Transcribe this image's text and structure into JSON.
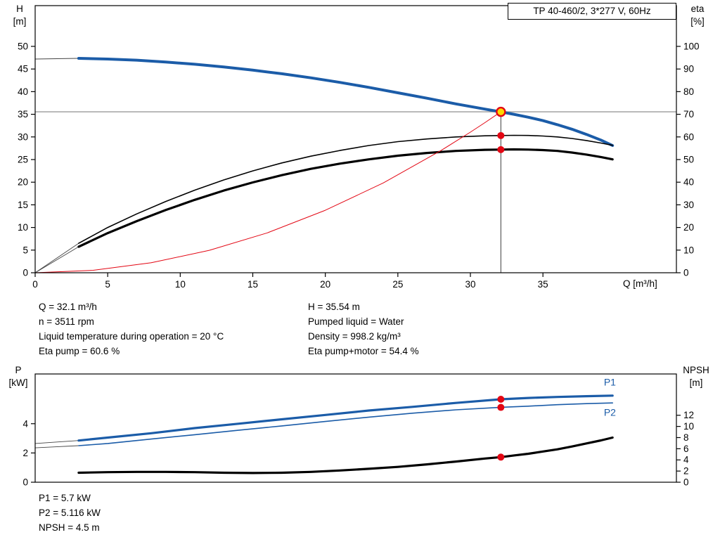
{
  "title_box": {
    "text": "TP 40-460/2, 3*277 V, 60Hz"
  },
  "annotations": {
    "top_left": [
      "Q = 32.1 m³/h",
      "n = 3511 rpm",
      "Liquid temperature during operation = 20 °C",
      "Eta pump = 60.6 %"
    ],
    "top_right": [
      "H = 35.54 m",
      "Pumped liquid = Water",
      "Density = 998.2 kg/m³",
      "Eta pump+motor = 54.4 %"
    ],
    "bottom": [
      "P1 = 5.7 kW",
      "P2 = 5.116 kW",
      "NPSH = 4.5 m"
    ]
  },
  "colors": {
    "curve_blue": "#1b5ca8",
    "curve_black": "#000000",
    "marker_red": "#e30613",
    "duty_yellow": "#ffd800",
    "ref_gray": "#9a9a9a",
    "ref_dark": "#3c3c3c",
    "thin_ext": "#444444"
  },
  "chart_data": [
    {
      "id": "qh-eta-chart",
      "type": "line",
      "title": "TP 40-460/2, 3*277 V, 60Hz",
      "x_axis": {
        "label": "Q [m³/h]",
        "min": 0,
        "max": 44.2,
        "ticks": [
          0,
          5,
          10,
          15,
          20,
          25,
          30,
          35
        ]
      },
      "y_left": {
        "label": [
          "H",
          "[m]"
        ],
        "min": 0,
        "max": 59,
        "ticks": [
          0,
          5,
          10,
          15,
          20,
          25,
          30,
          35,
          40,
          45,
          50
        ]
      },
      "y_right": {
        "label": [
          "eta",
          "[%]"
        ],
        "min": 0,
        "max": 118,
        "ticks": [
          0,
          10,
          20,
          30,
          40,
          50,
          60,
          70,
          80,
          90,
          100
        ]
      },
      "series": [
        {
          "name": "qh-curve-extension",
          "axis": "left",
          "color": "#444444",
          "width": 0.9,
          "points": [
            [
              0,
              47.2
            ],
            [
              3,
              47.35
            ]
          ]
        },
        {
          "name": "qh-curve",
          "axis": "left",
          "color": "#1b5ca8",
          "width": 4,
          "points": [
            [
              3,
              47.35
            ],
            [
              5,
              47.2
            ],
            [
              7,
              46.95
            ],
            [
              9,
              46.55
            ],
            [
              11,
              46.05
            ],
            [
              13,
              45.45
            ],
            [
              15,
              44.75
            ],
            [
              17,
              43.95
            ],
            [
              19,
              43.05
            ],
            [
              21,
              42.05
            ],
            [
              23,
              40.95
            ],
            [
              25,
              39.75
            ],
            [
              27,
              38.55
            ],
            [
              29,
              37.3
            ],
            [
              31,
              36.15
            ],
            [
              32.1,
              35.54
            ],
            [
              33,
              35.0
            ],
            [
              34,
              34.35
            ],
            [
              35,
              33.6
            ],
            [
              36,
              32.7
            ],
            [
              37,
              31.7
            ],
            [
              38,
              30.55
            ],
            [
              39,
              29.3
            ],
            [
              39.8,
              28.1
            ]
          ]
        },
        {
          "name": "eta-pump-extension",
          "axis": "right",
          "color": "#444444",
          "width": 0.9,
          "points": [
            [
              0,
              0
            ],
            [
              3,
              13
            ]
          ]
        },
        {
          "name": "eta-pump-curve",
          "axis": "right",
          "color": "#000000",
          "width": 1.6,
          "points": [
            [
              3,
              13
            ],
            [
              5,
              20
            ],
            [
              7,
              26
            ],
            [
              9,
              31.5
            ],
            [
              11,
              36.5
            ],
            [
              13,
              41
            ],
            [
              15,
              45
            ],
            [
              17,
              48.5
            ],
            [
              19,
              51.5
            ],
            [
              21,
              54
            ],
            [
              23,
              56.2
            ],
            [
              25,
              57.9
            ],
            [
              27,
              59.1
            ],
            [
              29,
              60
            ],
            [
              31,
              60.5
            ],
            [
              32.1,
              60.6
            ],
            [
              33,
              60.7
            ],
            [
              34,
              60.65
            ],
            [
              35,
              60.4
            ],
            [
              36,
              60
            ],
            [
              37,
              59.3
            ],
            [
              38,
              58.4
            ],
            [
              39,
              57.3
            ],
            [
              39.8,
              56.3
            ]
          ]
        },
        {
          "name": "eta-pump-motor-extension",
          "axis": "right",
          "color": "#444444",
          "width": 0.9,
          "points": [
            [
              0,
              0
            ],
            [
              3,
              11.5
            ]
          ]
        },
        {
          "name": "eta-pump-motor-curve",
          "axis": "right",
          "color": "#000000",
          "width": 3.2,
          "points": [
            [
              3,
              11.5
            ],
            [
              5,
              17.5
            ],
            [
              7,
              22.8
            ],
            [
              9,
              27.7
            ],
            [
              11,
              32.2
            ],
            [
              13,
              36.3
            ],
            [
              15,
              39.9
            ],
            [
              17,
              43.1
            ],
            [
              19,
              45.9
            ],
            [
              21,
              48.2
            ],
            [
              23,
              50.1
            ],
            [
              25,
              51.7
            ],
            [
              27,
              52.9
            ],
            [
              29,
              53.8
            ],
            [
              31,
              54.3
            ],
            [
              32.1,
              54.4
            ],
            [
              33,
              54.5
            ],
            [
              34,
              54.4
            ],
            [
              35,
              54.2
            ],
            [
              36,
              53.8
            ],
            [
              37,
              53.1
            ],
            [
              38,
              52.2
            ],
            [
              39,
              51.1
            ],
            [
              39.8,
              50.1
            ]
          ]
        },
        {
          "name": "affinity-parabola",
          "axis": "left",
          "color": "#e30613",
          "width": 1,
          "points": [
            [
              0,
              0
            ],
            [
              4,
              0.55
            ],
            [
              8,
              2.2
            ],
            [
              12,
              4.95
            ],
            [
              16,
              8.8
            ],
            [
              20,
              13.8
            ],
            [
              24,
              19.85
            ],
            [
              28,
              27.05
            ],
            [
              30,
              31.05
            ],
            [
              31,
              33.15
            ],
            [
              32.1,
              35.54
            ]
          ]
        }
      ],
      "reflines": [
        {
          "name": "duty-head-line",
          "type": "h",
          "axis": "left",
          "value": 35.54,
          "from": 0,
          "to": 44.2,
          "color": "#9a9a9a",
          "width": 1.4
        },
        {
          "name": "duty-flow-line",
          "type": "v",
          "axis": "left",
          "value": 32.1,
          "from": 0,
          "to": 35.54,
          "color": "#3c3c3c",
          "width": 1
        }
      ],
      "markers": [
        {
          "name": "duty-point-marker",
          "x": 32.1,
          "y": 35.54,
          "axis": "left",
          "style": "duty"
        },
        {
          "name": "eta-pump-marker",
          "x": 32.1,
          "y": 60.6,
          "axis": "right",
          "style": "dot"
        },
        {
          "name": "eta-pump-motor-marker",
          "x": 32.1,
          "y": 54.4,
          "axis": "right",
          "style": "dot"
        }
      ]
    },
    {
      "id": "power-npsh-chart",
      "type": "line",
      "x_axis": {
        "label": "",
        "min": 0,
        "max": 44.2,
        "ticks": []
      },
      "y_left": {
        "label": [
          "P",
          "[kW]"
        ],
        "min": 0,
        "max": 7.4,
        "ticks": [
          0,
          2,
          4
        ]
      },
      "y_right": {
        "label": [
          "NPSH",
          "[m]"
        ],
        "min": 0,
        "max": 19.4,
        "ticks": [
          0,
          2,
          4,
          6,
          8,
          10,
          12
        ]
      },
      "series": [
        {
          "name": "p1-extension",
          "axis": "left",
          "color": "#444444",
          "width": 0.9,
          "points": [
            [
              0,
              2.65
            ],
            [
              3,
              2.85
            ]
          ]
        },
        {
          "name": "p1-curve",
          "axis": "left",
          "color": "#1b5ca8",
          "width": 3.2,
          "label": "P1",
          "label_at": [
            39.2,
            6.6
          ],
          "points": [
            [
              3,
              2.85
            ],
            [
              5,
              3.05
            ],
            [
              8,
              3.35
            ],
            [
              11,
              3.7
            ],
            [
              14,
              4.0
            ],
            [
              17,
              4.3
            ],
            [
              20,
              4.6
            ],
            [
              23,
              4.9
            ],
            [
              26,
              5.15
            ],
            [
              29,
              5.42
            ],
            [
              32.1,
              5.67
            ],
            [
              34,
              5.76
            ],
            [
              36,
              5.83
            ],
            [
              38,
              5.88
            ],
            [
              39.8,
              5.92
            ]
          ]
        },
        {
          "name": "p2-extension",
          "axis": "left",
          "color": "#444444",
          "width": 0.9,
          "points": [
            [
              0,
              2.35
            ],
            [
              3,
              2.5
            ]
          ]
        },
        {
          "name": "p2-curve",
          "axis": "left",
          "color": "#1b5ca8",
          "width": 1.6,
          "label": "P2",
          "label_at": [
            39.2,
            4.55
          ],
          "points": [
            [
              3,
              2.5
            ],
            [
              5,
              2.65
            ],
            [
              8,
              2.95
            ],
            [
              11,
              3.25
            ],
            [
              14,
              3.55
            ],
            [
              17,
              3.85
            ],
            [
              20,
              4.15
            ],
            [
              23,
              4.45
            ],
            [
              26,
              4.72
            ],
            [
              29,
              4.95
            ],
            [
              32.1,
              5.12
            ],
            [
              34,
              5.2
            ],
            [
              36,
              5.3
            ],
            [
              38,
              5.37
            ],
            [
              39.8,
              5.42
            ]
          ]
        },
        {
          "name": "npsh-curve",
          "axis": "right",
          "color": "#000000",
          "width": 3.2,
          "points": [
            [
              3,
              1.7
            ],
            [
              5,
              1.8
            ],
            [
              7,
              1.85
            ],
            [
              9,
              1.85
            ],
            [
              11,
              1.8
            ],
            [
              13,
              1.7
            ],
            [
              15,
              1.65
            ],
            [
              17,
              1.7
            ],
            [
              19,
              1.85
            ],
            [
              21,
              2.1
            ],
            [
              23,
              2.4
            ],
            [
              25,
              2.75
            ],
            [
              27,
              3.2
            ],
            [
              29,
              3.7
            ],
            [
              31,
              4.25
            ],
            [
              32.1,
              4.5
            ],
            [
              33,
              4.8
            ],
            [
              34,
              5.1
            ],
            [
              35,
              5.5
            ],
            [
              36,
              5.9
            ],
            [
              37,
              6.4
            ],
            [
              38,
              6.95
            ],
            [
              39,
              7.5
            ],
            [
              39.8,
              8.0
            ]
          ]
        }
      ],
      "reflines": [],
      "markers": [
        {
          "name": "p1-marker",
          "x": 32.1,
          "y": 5.67,
          "axis": "left",
          "style": "dot"
        },
        {
          "name": "p2-marker",
          "x": 32.1,
          "y": 5.116,
          "axis": "left",
          "style": "dot"
        },
        {
          "name": "npsh-marker",
          "x": 32.1,
          "y": 4.5,
          "axis": "right",
          "style": "dot"
        }
      ]
    }
  ]
}
